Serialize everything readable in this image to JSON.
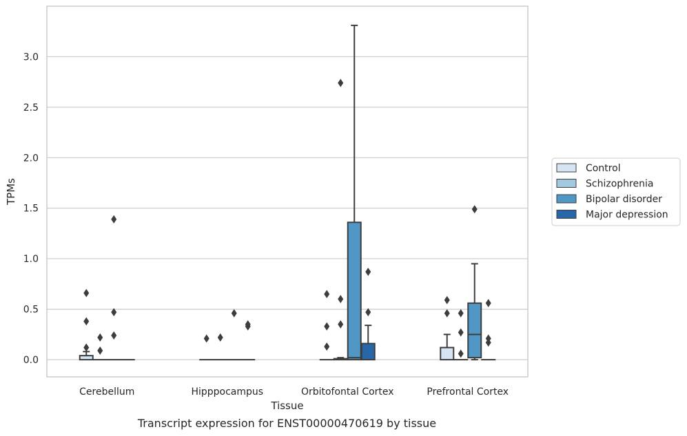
{
  "chart_data": {
    "type": "box",
    "title": "",
    "xlabel": "Tissue",
    "ylabel": "TPMs",
    "ylim": [
      -0.17,
      3.5
    ],
    "yticks": [
      0.0,
      0.5,
      1.0,
      1.5,
      2.0,
      2.5,
      3.0
    ],
    "ytick_labels": [
      "0.0",
      "0.5",
      "1.0",
      "1.5",
      "2.0",
      "2.5",
      "3.0"
    ],
    "grid": "horizontal",
    "legend_position": "right-center",
    "categories": [
      "Cerebellum",
      "Hipppocampus",
      "Orbitofontal Cortex",
      "Prefrontal Cortex"
    ],
    "series": [
      {
        "name": "Control",
        "color": "#d6e5f4",
        "boxes": [
          {
            "whislo": 0.0,
            "q1": 0.0,
            "med": 0.0,
            "q3": 0.04,
            "whishi": 0.08,
            "fliers": [
              0.12,
              0.38,
              0.66
            ]
          },
          {
            "whislo": 0.0,
            "q1": 0.0,
            "med": 0.0,
            "q3": 0.0,
            "whishi": 0.0,
            "fliers": [
              0.21
            ]
          },
          {
            "whislo": 0.0,
            "q1": 0.0,
            "med": 0.0,
            "q3": 0.0,
            "whishi": 0.0,
            "fliers": [
              0.13,
              0.33,
              0.65
            ]
          },
          {
            "whislo": 0.0,
            "q1": 0.0,
            "med": 0.0,
            "q3": 0.12,
            "whishi": 0.25,
            "fliers": [
              0.46,
              0.59
            ]
          }
        ]
      },
      {
        "name": "Schizophrenia",
        "color": "#a3c9e1",
        "boxes": [
          {
            "whislo": 0.0,
            "q1": 0.0,
            "med": 0.0,
            "q3": 0.0,
            "whishi": 0.0,
            "fliers": [
              0.09,
              0.22
            ]
          },
          {
            "whislo": 0.0,
            "q1": 0.0,
            "med": 0.0,
            "q3": 0.0,
            "whishi": 0.0,
            "fliers": [
              0.22
            ]
          },
          {
            "whislo": 0.0,
            "q1": 0.0,
            "med": 0.0,
            "q3": 0.01,
            "whishi": 0.02,
            "fliers": [
              0.35,
              0.6,
              2.74
            ]
          },
          {
            "whislo": 0.0,
            "q1": 0.0,
            "med": 0.0,
            "q3": 0.0,
            "whishi": 0.0,
            "fliers": [
              0.06,
              0.27,
              0.46
            ]
          }
        ]
      },
      {
        "name": "Bipolar disorder",
        "color": "#5197c5",
        "boxes": [
          {
            "whislo": 0.0,
            "q1": 0.0,
            "med": 0.0,
            "q3": 0.0,
            "whishi": 0.0,
            "fliers": [
              0.24,
              0.47,
              1.39
            ]
          },
          {
            "whislo": 0.0,
            "q1": 0.0,
            "med": 0.0,
            "q3": 0.0,
            "whishi": 0.0,
            "fliers": [
              0.46
            ]
          },
          {
            "whislo": 0.0,
            "q1": 0.0,
            "med": 0.02,
            "q3": 1.36,
            "whishi": 3.31,
            "fliers": []
          },
          {
            "whislo": 0.0,
            "q1": 0.02,
            "med": 0.25,
            "q3": 0.56,
            "whishi": 0.95,
            "fliers": [
              1.49
            ]
          }
        ]
      },
      {
        "name": "Major depression",
        "color": "#2767a8",
        "boxes": [
          {
            "whislo": 0.0,
            "q1": 0.0,
            "med": 0.0,
            "q3": 0.0,
            "whishi": 0.0,
            "fliers": []
          },
          {
            "whislo": 0.0,
            "q1": 0.0,
            "med": 0.0,
            "q3": 0.0,
            "whishi": 0.0,
            "fliers": [
              0.33,
              0.35
            ]
          },
          {
            "whislo": 0.0,
            "q1": 0.0,
            "med": 0.0,
            "q3": 0.16,
            "whishi": 0.34,
            "fliers": [
              0.47,
              0.87
            ]
          },
          {
            "whislo": 0.0,
            "q1": 0.0,
            "med": 0.0,
            "q3": 0.0,
            "whishi": 0.0,
            "fliers": [
              0.17,
              0.21,
              0.56
            ]
          }
        ]
      }
    ]
  },
  "caption": "Transcript expression for ENST00000470619 by tissue"
}
